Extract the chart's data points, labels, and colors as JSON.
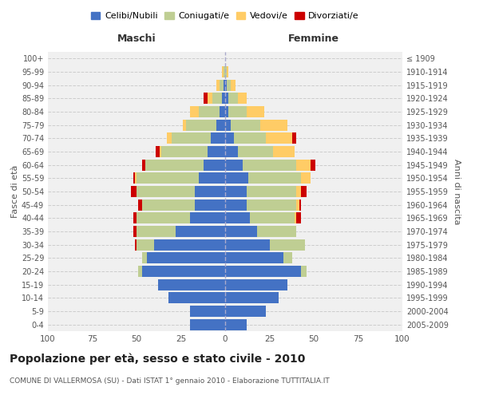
{
  "age_groups": [
    "0-4",
    "5-9",
    "10-14",
    "15-19",
    "20-24",
    "25-29",
    "30-34",
    "35-39",
    "40-44",
    "45-49",
    "50-54",
    "55-59",
    "60-64",
    "65-69",
    "70-74",
    "75-79",
    "80-84",
    "85-89",
    "90-94",
    "95-99",
    "100+"
  ],
  "birth_years": [
    "2005-2009",
    "2000-2004",
    "1995-1999",
    "1990-1994",
    "1985-1989",
    "1980-1984",
    "1975-1979",
    "1970-1974",
    "1965-1969",
    "1960-1964",
    "1955-1959",
    "1950-1954",
    "1945-1949",
    "1940-1944",
    "1935-1939",
    "1930-1934",
    "1925-1929",
    "1920-1924",
    "1915-1919",
    "1910-1914",
    "≤ 1909"
  ],
  "male": {
    "celibi": [
      20,
      20,
      32,
      38,
      47,
      44,
      40,
      28,
      20,
      17,
      17,
      15,
      12,
      10,
      8,
      5,
      3,
      2,
      1,
      0,
      0
    ],
    "coniugati": [
      0,
      0,
      0,
      0,
      2,
      3,
      10,
      22,
      30,
      30,
      33,
      35,
      33,
      26,
      22,
      17,
      12,
      5,
      2,
      1,
      0
    ],
    "vedovi": [
      0,
      0,
      0,
      0,
      0,
      0,
      0,
      0,
      0,
      0,
      0,
      1,
      0,
      1,
      3,
      2,
      5,
      3,
      2,
      1,
      0
    ],
    "divorziati": [
      0,
      0,
      0,
      0,
      0,
      0,
      1,
      2,
      2,
      2,
      3,
      1,
      2,
      2,
      0,
      0,
      0,
      2,
      0,
      0,
      0
    ]
  },
  "female": {
    "nubili": [
      12,
      23,
      30,
      35,
      43,
      33,
      25,
      18,
      14,
      12,
      12,
      13,
      10,
      7,
      5,
      3,
      2,
      2,
      1,
      0,
      0
    ],
    "coniugate": [
      0,
      0,
      0,
      0,
      3,
      5,
      20,
      22,
      25,
      28,
      28,
      30,
      30,
      20,
      18,
      17,
      10,
      5,
      2,
      1,
      0
    ],
    "vedove": [
      0,
      0,
      0,
      0,
      0,
      0,
      0,
      0,
      1,
      2,
      3,
      5,
      8,
      12,
      15,
      15,
      10,
      5,
      3,
      1,
      0
    ],
    "divorziate": [
      0,
      0,
      0,
      0,
      0,
      0,
      0,
      0,
      3,
      1,
      3,
      0,
      3,
      0,
      2,
      0,
      0,
      0,
      0,
      0,
      0
    ]
  },
  "colors": {
    "celibi_nubili": "#4472C4",
    "coniugati": "#BFCE93",
    "vedovi": "#FFCC66",
    "divorziati": "#CC0000"
  },
  "xlim": 100,
  "title": "Popolazione per età, sesso e stato civile - 2010",
  "subtitle": "COMUNE DI VALLERMOSA (SU) - Dati ISTAT 1° gennaio 2010 - Elaborazione TUTTITALIA.IT",
  "xlabel_left": "Maschi",
  "xlabel_right": "Femmine",
  "ylabel_left": "Fasce di età",
  "ylabel_right": "Anni di nascita",
  "bg_color": "#FFFFFF",
  "plot_bg_color": "#F0F0F0",
  "xticks": [
    -100,
    -75,
    -50,
    -25,
    0,
    25,
    50,
    75,
    100
  ],
  "xtick_labels": [
    "100",
    "75",
    "50",
    "25",
    "0",
    "25",
    "50",
    "75",
    "100"
  ]
}
